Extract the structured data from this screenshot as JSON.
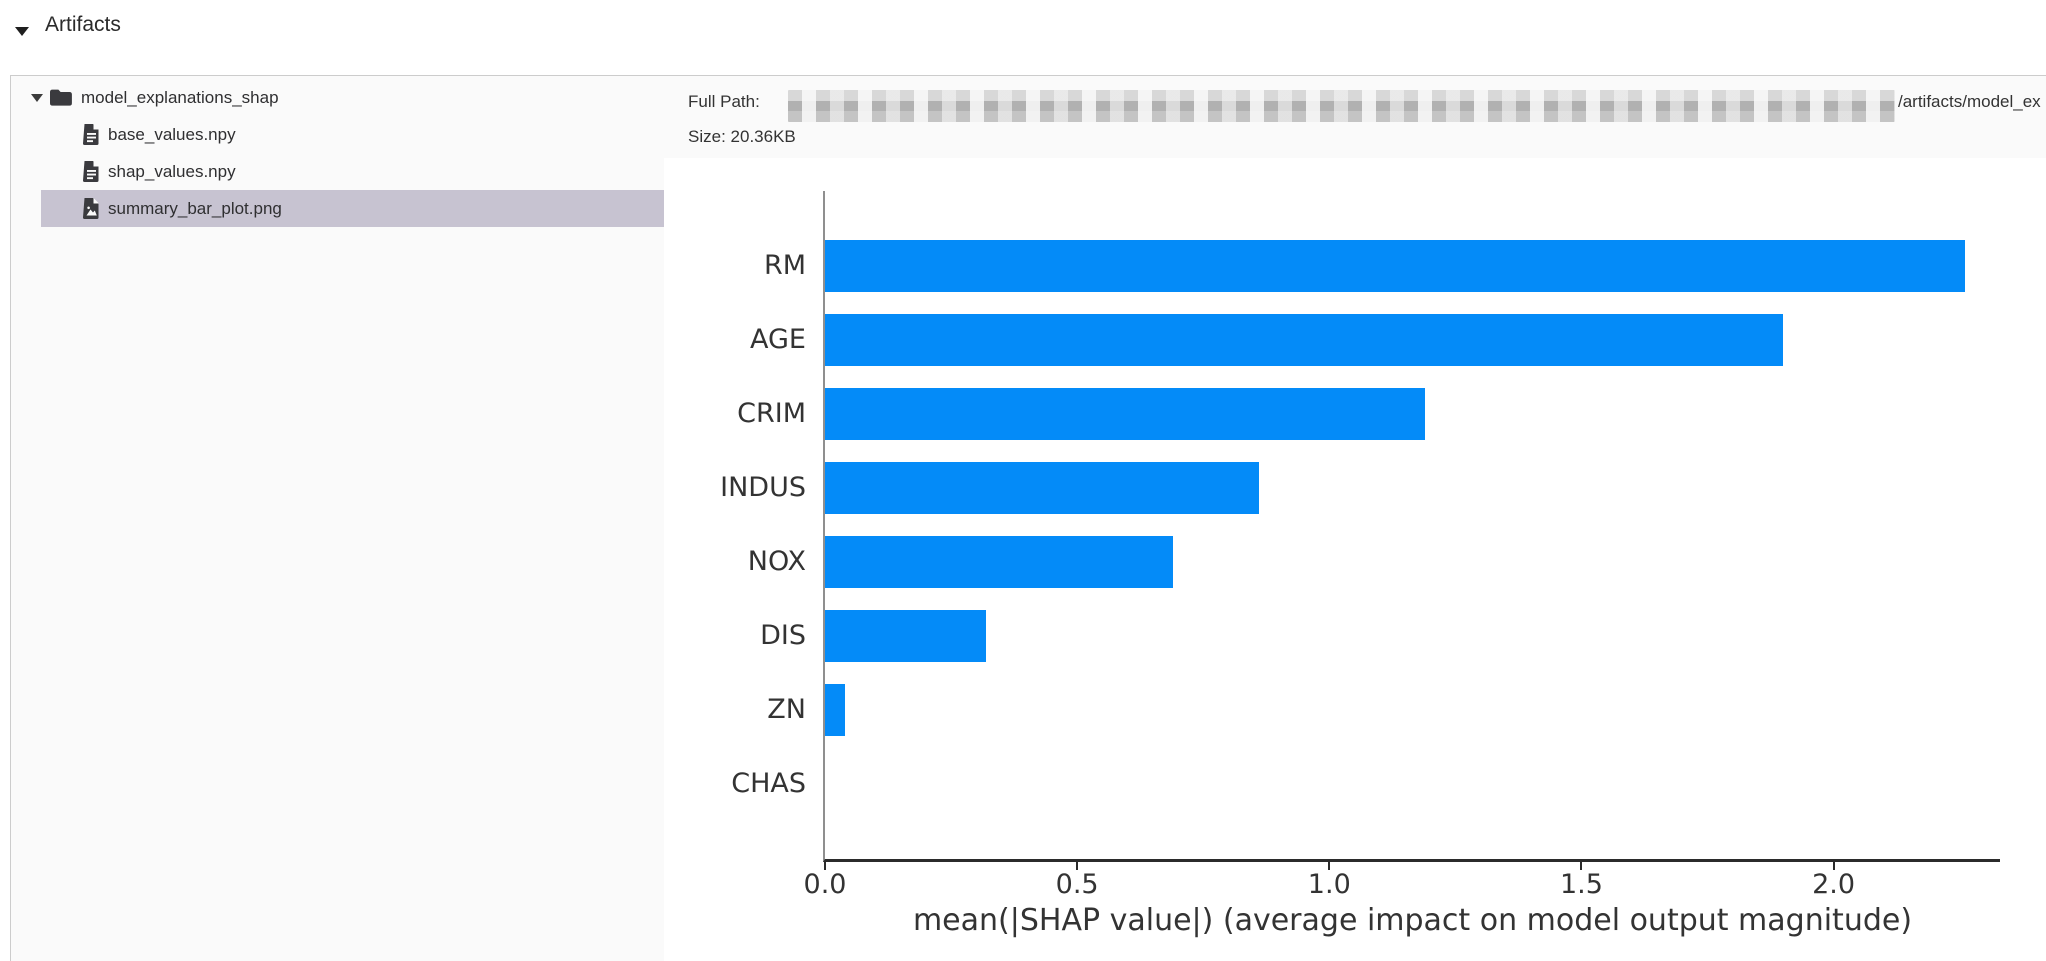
{
  "header": {
    "title": "Artifacts"
  },
  "file_tree": {
    "folder": {
      "label": "model_explanations_shap",
      "expanded": true
    },
    "files": [
      {
        "label": "base_values.npy",
        "type": "file",
        "selected": false
      },
      {
        "label": "shap_values.npy",
        "type": "file",
        "selected": false
      },
      {
        "label": "summary_bar_plot.png",
        "type": "image",
        "selected": true
      }
    ],
    "selected_bg": "#c7c3d1"
  },
  "detail_header": {
    "full_path_label": "Full Path:",
    "path_redacted": true,
    "path_visible_suffix": "/artifacts/model_ex",
    "size_label": "Size:",
    "size_value": "20.36KB"
  },
  "icons": {
    "collapse": "triangle-down-icon",
    "folder_expander": "triangle-down-icon",
    "folder": "folder-icon",
    "file": "file-text-icon",
    "image_file": "file-image-icon"
  },
  "chart_data": {
    "type": "bar",
    "orientation": "horizontal",
    "title": "",
    "categories": [
      "RM",
      "AGE",
      "CRIM",
      "INDUS",
      "NOX",
      "DIS",
      "ZN",
      "CHAS"
    ],
    "values": [
      2.26,
      1.9,
      1.19,
      0.86,
      0.69,
      0.32,
      0.04,
      0.0
    ],
    "xlabel": "mean(|SHAP value|) (average impact on model output magnitude)",
    "ylabel": "",
    "xticks": [
      0.0,
      0.5,
      1.0,
      1.5,
      2.0
    ],
    "xtick_labels": [
      "0.0",
      "0.5",
      "1.0",
      "1.5",
      "2.0"
    ],
    "xlim": [
      0,
      2.33
    ],
    "grid": false,
    "legend": null,
    "bar_color": "#048bf8",
    "axis_color": "#2b2b2b"
  }
}
